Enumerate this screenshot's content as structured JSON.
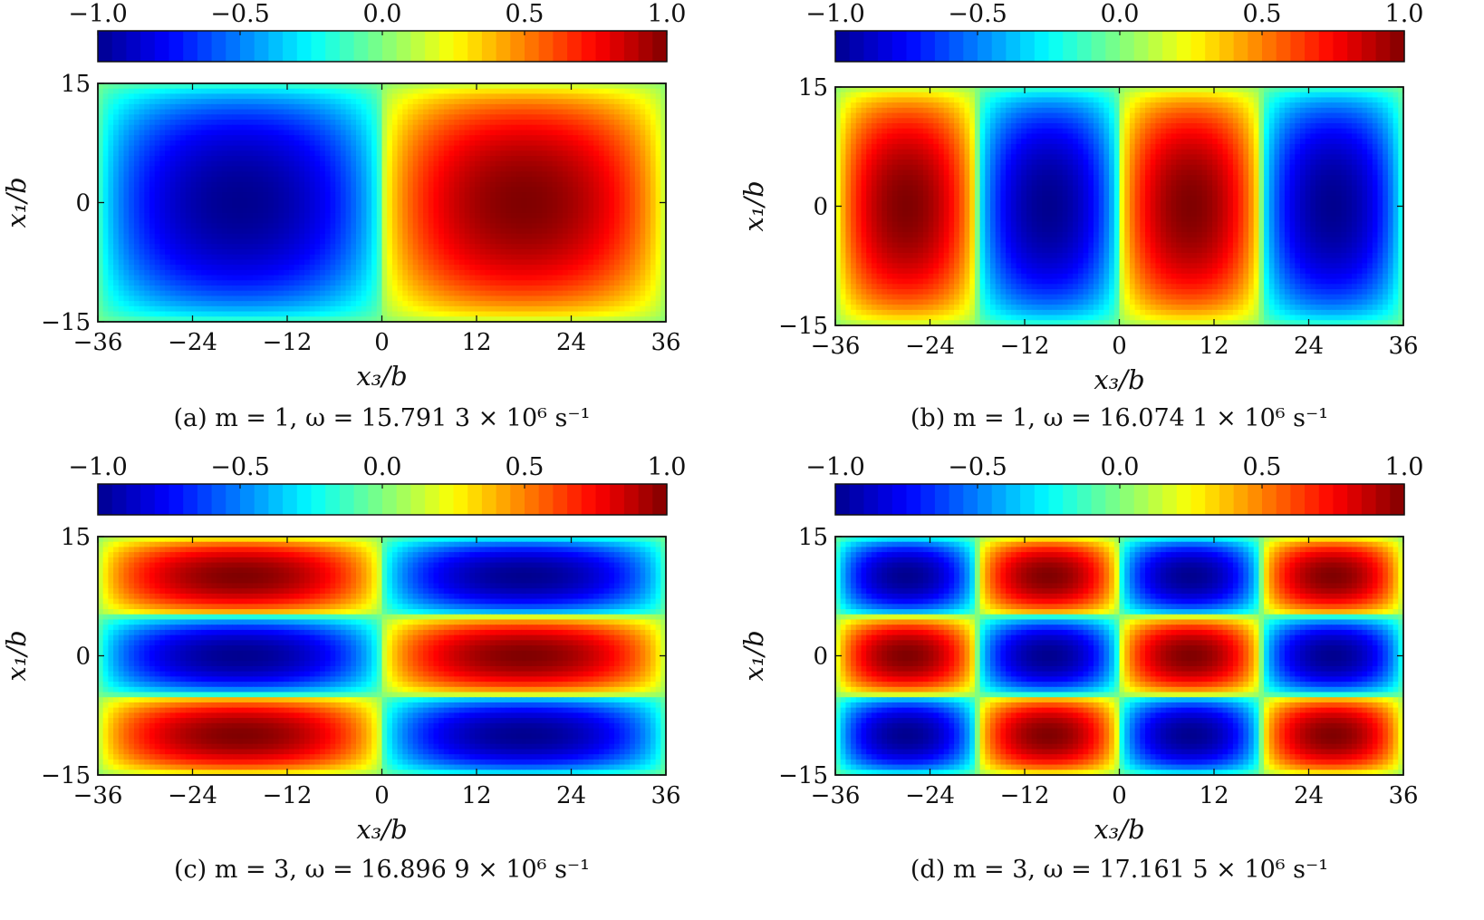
{
  "colors": {
    "colormap": [
      "#00008f",
      "#0000ff",
      "#0080ff",
      "#00ffff",
      "#80ff80",
      "#ffff00",
      "#ff8000",
      "#ff0000",
      "#800000"
    ],
    "background": "#86e860",
    "frame": "#111111"
  },
  "chart_data": [
    {
      "type": "heatmap",
      "panel": "a",
      "caption": "(a) m = 1, ω = 15.791 3 × 10⁶ s⁻¹",
      "xlabel": "x₃/b",
      "ylabel": "x₁/b",
      "xlim": [
        -36,
        36
      ],
      "ylim": [
        -15,
        15
      ],
      "xticks": [
        "−36",
        "−24",
        "−12",
        "0",
        "12",
        "24",
        "36"
      ],
      "yticks": [
        "15",
        "0",
        "−15"
      ],
      "colorbar": {
        "range": [
          -1.0,
          1.0
        ],
        "ticks": [
          "−1.0",
          "−0.5",
          "0.0",
          "0.5",
          "1.0"
        ]
      },
      "field": {
        "m": 1,
        "n": 2,
        "phase": -1
      }
    },
    {
      "type": "heatmap",
      "panel": "b",
      "caption": "(b) m = 1, ω = 16.074 1 × 10⁶ s⁻¹",
      "xlabel": "x₃/b",
      "ylabel": "x₁/b",
      "xlim": [
        -36,
        36
      ],
      "ylim": [
        -15,
        15
      ],
      "xticks": [
        "−36",
        "−24",
        "−12",
        "0",
        "12",
        "24",
        "36"
      ],
      "yticks": [
        "15",
        "0",
        "−15"
      ],
      "colorbar": {
        "range": [
          -1.0,
          1.0
        ],
        "ticks": [
          "−1.0",
          "−0.5",
          "0.0",
          "0.5",
          "1.0"
        ]
      },
      "field": {
        "m": 1,
        "n": 4,
        "phase": 1
      }
    },
    {
      "type": "heatmap",
      "panel": "c",
      "caption": "(c) m = 3, ω = 16.896 9 × 10⁶ s⁻¹",
      "xlabel": "x₃/b",
      "ylabel": "x₁/b",
      "xlim": [
        -36,
        36
      ],
      "ylim": [
        -15,
        15
      ],
      "xticks": [
        "−36",
        "−24",
        "−12",
        "0",
        "12",
        "24",
        "36"
      ],
      "yticks": [
        "15",
        "0",
        "−15"
      ],
      "colorbar": {
        "range": [
          -1.0,
          1.0
        ],
        "ticks": [
          "−1.0",
          "−0.5",
          "0.0",
          "0.5",
          "1.0"
        ]
      },
      "field": {
        "m": 3,
        "n": 2,
        "phase": 1
      }
    },
    {
      "type": "heatmap",
      "panel": "d",
      "caption": "(d) m = 3, ω = 17.161 5 × 10⁶ s⁻¹",
      "xlabel": "x₃/b",
      "ylabel": "x₁/b",
      "xlim": [
        -36,
        36
      ],
      "ylim": [
        -15,
        15
      ],
      "xticks": [
        "−36",
        "−24",
        "−12",
        "0",
        "12",
        "24",
        "36"
      ],
      "yticks": [
        "15",
        "0",
        "−15"
      ],
      "colorbar": {
        "range": [
          -1.0,
          1.0
        ],
        "ticks": [
          "−1.0",
          "−0.5",
          "0.0",
          "0.5",
          "1.0"
        ]
      },
      "field": {
        "m": 3,
        "n": 4,
        "phase": -1
      }
    }
  ]
}
